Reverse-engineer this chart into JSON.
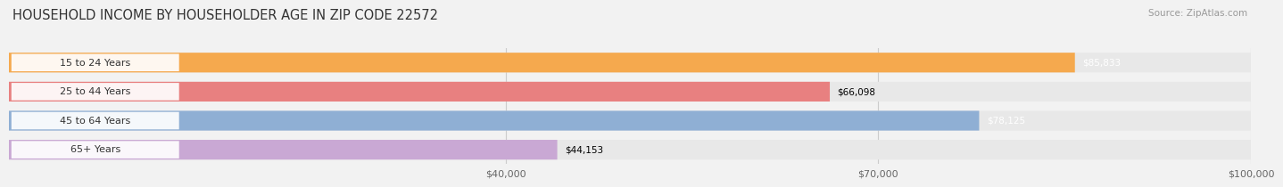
{
  "title": "HOUSEHOLD INCOME BY HOUSEHOLDER AGE IN ZIP CODE 22572",
  "source": "Source: ZipAtlas.com",
  "categories": [
    "15 to 24 Years",
    "25 to 44 Years",
    "45 to 64 Years",
    "65+ Years"
  ],
  "values": [
    85833,
    66098,
    78125,
    44153
  ],
  "bar_colors": [
    "#F5A94E",
    "#E88080",
    "#8FAFD4",
    "#C9A8D4"
  ],
  "value_labels": [
    "$85,833",
    "$66,098",
    "$78,125",
    "$44,153"
  ],
  "value_label_colors": [
    "white",
    "black",
    "white",
    "black"
  ],
  "xlim": [
    0,
    100000
  ],
  "xticks": [
    40000,
    70000,
    100000
  ],
  "xtick_labels": [
    "$40,000",
    "$70,000",
    "$100,000"
  ],
  "background_color": "#F2F2F2",
  "bar_bg_color": "#E8E8E8",
  "title_fontsize": 10.5,
  "source_fontsize": 7.5,
  "label_fontsize": 8,
  "value_fontsize": 7.5
}
